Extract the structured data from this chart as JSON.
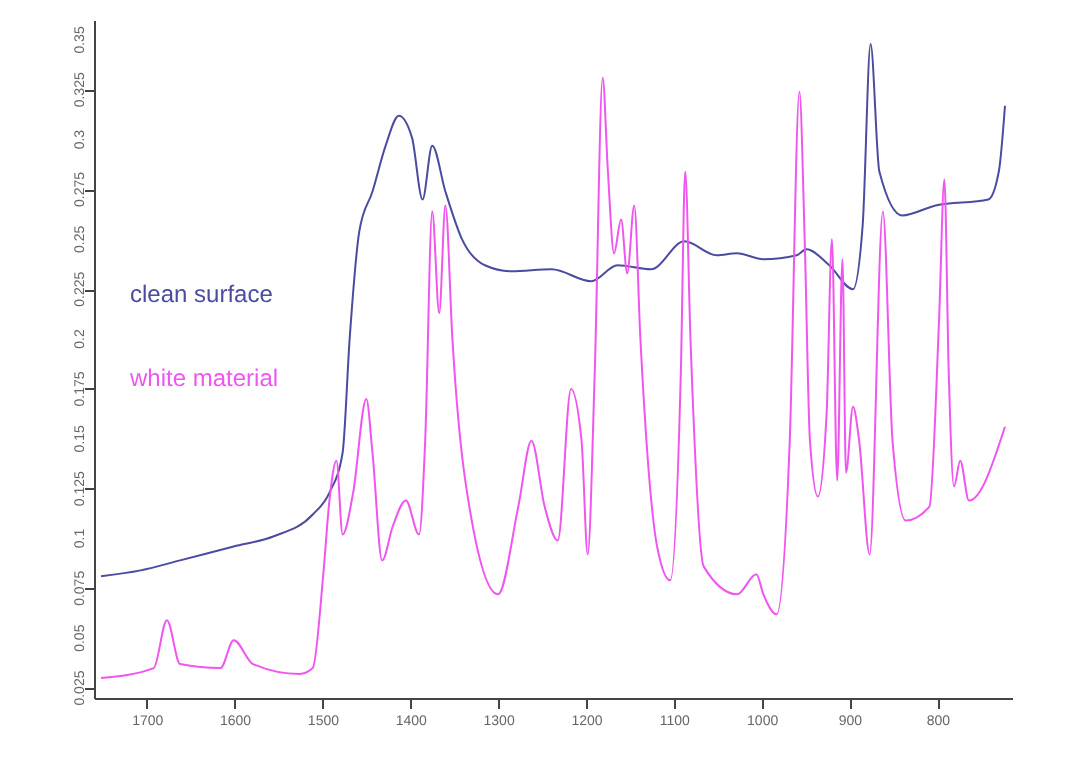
{
  "chart_data": {
    "type": "line",
    "xlim": [
      1760,
      715
    ],
    "xticks": [
      1700,
      1600,
      1500,
      1400,
      1300,
      1200,
      1100,
      1000,
      900,
      800
    ],
    "ylim": [
      0.02,
      0.36
    ],
    "yticks": [
      0.025,
      0.05,
      0.075,
      0.1,
      0.125,
      0.15,
      0.175,
      0.2,
      0.225,
      0.25,
      0.275,
      0.3,
      0.325,
      0.35
    ],
    "grid": false,
    "line_style": "solid",
    "marker": "none",
    "series": [
      {
        "name": "clean surface",
        "color": "#4b4ba0",
        "x": [
          1752,
          1707,
          1662,
          1601,
          1556,
          1511,
          1492,
          1477,
          1469,
          1458,
          1443,
          1428,
          1413,
          1398,
          1386,
          1375,
          1360,
          1341,
          1315,
          1285,
          1239,
          1194,
          1164,
          1126,
          1088,
          1051,
          1028,
          998,
          960,
          949,
          923,
          896,
          885,
          876,
          866,
          840,
          802,
          742,
          730,
          723
        ],
        "values": [
          0.081,
          0.084,
          0.089,
          0.096,
          0.101,
          0.112,
          0.123,
          0.143,
          0.2,
          0.254,
          0.274,
          0.297,
          0.312,
          0.301,
          0.27,
          0.297,
          0.274,
          0.25,
          0.237,
          0.234,
          0.235,
          0.229,
          0.237,
          0.235,
          0.249,
          0.242,
          0.243,
          0.24,
          0.242,
          0.245,
          0.237,
          0.225,
          0.257,
          0.348,
          0.284,
          0.262,
          0.267,
          0.27,
          0.284,
          0.317
        ]
      },
      {
        "name": "white material",
        "color": "#f055f0",
        "x": [
          1752,
          1692,
          1677,
          1662,
          1616,
          1601,
          1579,
          1526,
          1511,
          1499,
          1492,
          1484,
          1477,
          1465,
          1450,
          1443,
          1432,
          1420,
          1405,
          1390,
          1383,
          1375,
          1367,
          1360,
          1352,
          1330,
          1300,
          1277,
          1262,
          1247,
          1232,
          1217,
          1205,
          1198,
          1190,
          1181,
          1175,
          1168,
          1160,
          1153,
          1145,
          1138,
          1119,
          1104,
          1092,
          1087,
          1081,
          1066,
          1028,
          1006,
          998,
          983,
          968,
          957,
          951,
          945,
          936,
          926,
          920,
          914,
          908,
          904,
          896,
          889,
          877,
          862,
          851,
          836,
          809,
          798,
          792,
          787,
          781,
          774,
          764,
          723
        ],
        "values": [
          0.03,
          0.035,
          0.059,
          0.037,
          0.035,
          0.049,
          0.037,
          0.032,
          0.035,
          0.082,
          0.119,
          0.139,
          0.102,
          0.123,
          0.17,
          0.143,
          0.089,
          0.106,
          0.119,
          0.102,
          0.149,
          0.264,
          0.213,
          0.267,
          0.2,
          0.109,
          0.072,
          0.116,
          0.149,
          0.116,
          0.099,
          0.175,
          0.149,
          0.092,
          0.183,
          0.331,
          0.284,
          0.243,
          0.26,
          0.233,
          0.267,
          0.2,
          0.096,
          0.079,
          0.183,
          0.284,
          0.2,
          0.086,
          0.072,
          0.082,
          0.072,
          0.062,
          0.149,
          0.324,
          0.25,
          0.149,
          0.121,
          0.163,
          0.25,
          0.129,
          0.24,
          0.133,
          0.166,
          0.149,
          0.092,
          0.264,
          0.149,
          0.109,
          0.116,
          0.21,
          0.28,
          0.183,
          0.126,
          0.139,
          0.119,
          0.156
        ]
      }
    ]
  }
}
